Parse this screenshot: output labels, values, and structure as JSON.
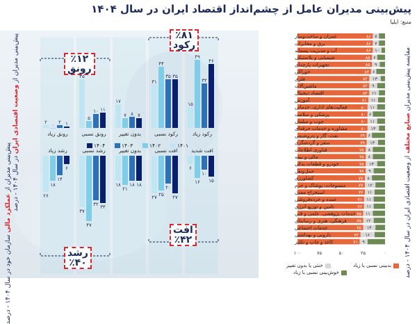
{
  "title": "پیش‌بینی مدیران عامل از چشم‌انداز اقتصاد ایران در سال ۱۴۰۴",
  "source": "منبع: ایلیا",
  "colors": {
    "orange": "#e8673a",
    "light": "#d9d9d9",
    "green": "#6d8a55",
    "bg_light_blue": "#9fd6ea",
    "y1401": "#bfe6f2",
    "y1402": "#7fcde6",
    "y1403": "#2e6fb6",
    "y1404": "#0a1f6b",
    "navy": "#1c2a5a",
    "red": "#d9262f"
  },
  "left": {
    "axis_title_top_pre": "پیش‌بینی مدیران از ",
    "axis_title_top_hi": "وضعیت اقتصادی ایران",
    "axis_title_top_post": " در سال ۱۴۰۴ - درصد",
    "axis_title_bottom_pre": "پیش‌بینی مدیران از ",
    "axis_title_bottom_hi": "عملکرد مالی",
    "axis_title_bottom_post": " سازمان خود در سال ۱۴۰۴ - درصد",
    "panel_rokud": {
      "name": "رکود",
      "pct": "٪۸۱"
    },
    "panel_ronagh": {
      "name": "رونق",
      "pct": "٪۱۲"
    },
    "panel_oft": {
      "name": "افت",
      "pct": "٪۴۲"
    },
    "panel_roshd": {
      "name": "رشد",
      "pct": "٪۴۰"
    }
  },
  "right": {
    "axis_title_pre": "مقایسه پیش‌بینی مدیران ",
    "axis_title_hi": "صنایع مختلف",
    "axis_title_post": " از وضعیت اقتصادی ایران در سال ۱۴۰۴ - درصد",
    "legend": [
      "بدبینی نسبی یا زیاد",
      "خنثی یا بدون تغییر",
      "خوش‌بینی نسبی یا زیاد"
    ],
    "x_ticks": [
      "۱۰۰",
      "۷۵",
      "۵۰",
      "۲۵",
      "۰"
    ]
  },
  "chart_data": [
    {
      "type": "bar",
      "title": "پیش‌بینی مدیران از وضعیت اقتصادی ایران در سال ۱۴۰۴ - درصد",
      "categories": [
        "رکود زیاد",
        "رکود نسبی",
        "بدون تغییر",
        "رونق نسبی",
        "رونق زیاد"
      ],
      "years": [
        "۱۴۰۱",
        "۱۴۰۲",
        "۱۴۰۳",
        "۱۴۰۴"
      ],
      "series": [
        {
          "name": "۱۴۰۱",
          "values": [
            15,
            31,
            17,
            35,
            2
          ],
          "labels": [
            "۱۵",
            "۳۱",
            "۱۷",
            "۳۵",
            "۲"
          ]
        },
        {
          "name": "۱۴۰۲",
          "values": [
            49,
            44,
            7,
            5,
            0
          ],
          "labels": [
            "۴۹",
            "۴۴",
            "۷",
            "۵",
            "۰"
          ]
        },
        {
          "name": "۱۴۰۳",
          "values": [
            32,
            35,
            8,
            10,
            2
          ],
          "labels": [
            "۳۲",
            "۳۵",
            "۸",
            "۱۰",
            "۲"
          ]
        },
        {
          "name": "۱۴۰۴",
          "values": [
            46,
            35,
            7,
            11,
            1
          ],
          "labels": [
            "۴۶",
            "۳۵",
            "۷",
            "۱۱",
            "۱"
          ]
        }
      ],
      "ylim": [
        0,
        55
      ]
    },
    {
      "type": "bar",
      "title": "پیش‌بینی مدیران از عملکرد مالی سازمان خود در سال ۱۴۰۴ - درصد",
      "categories": [
        "افت شدید",
        "افت نسبی",
        "بدون تغییر",
        "رشد نسبی",
        "رشد زیاد"
      ],
      "years": [
        "۱۴۰۱",
        "۱۴۰۲",
        "۱۴۰۳",
        "۱۴۰۴"
      ],
      "series": [
        {
          "name": "۱۴۰۱",
          "values": [
            6,
            27,
            18,
            37,
            26
          ],
          "labels": [
            "۶",
            "۲۷",
            "۱۸",
            "۳۷",
            "۲۶"
          ]
        },
        {
          "name": "۱۴۰۲",
          "values": [
            16,
            25,
            21,
            47,
            18
          ],
          "labels": [
            "۱۶",
            "۲۵",
            "۲۱",
            "۴۷",
            "۱۸"
          ]
        },
        {
          "name": "۱۴۰۳",
          "values": [
            10,
            20,
            18,
            32,
            14
          ],
          "labels": [
            "۱۰",
            "۲۰",
            "۱۸",
            "۳۲",
            "۱۴"
          ]
        },
        {
          "name": "۱۴۰۴",
          "values": [
            15,
            27,
            18,
            34,
            6
          ],
          "labels": [
            "۱۵",
            "۲۷",
            "۱۸",
            "۳۴",
            "۶"
          ]
        }
      ],
      "ylim": [
        0,
        55
      ]
    },
    {
      "type": "bar",
      "stacked": true,
      "orientation": "horizontal",
      "title": "مقایسه پیش‌بینی مدیران صنایع مختلف از وضعیت اقتصادی ایران در سال ۱۴۰۴ - درصد",
      "categories": [
        "عمران و ساخت‌وساز",
        "برق و مخابرات",
        "آب و مدیریت پسماند",
        "شیمیایی و پلاستیکی",
        "تجهیزات پارچه‌ای",
        "خوراکی",
        "فلزی",
        "ماشین‌آلات",
        "اقتصاد دیجیتال",
        "آموزش",
        "فعالیت‌های اداری، خدماتی",
        "پزشکی و سلامت",
        "چوب و مبلمان",
        "مشاوره و خدمات حرفه‌ای",
        "نفت، گاز و پتروشیمی",
        "سفر و گردشگری",
        "فناوری اطلاعات",
        "مالی و بیمه",
        "خودرو و قطعات یدکی",
        "حمل‌ونقل",
        "کشاورزی",
        "منسوجات، پوشاک و چرم",
        "استخراج معدن",
        "عمده و خرده‌فروشی",
        "تامین و توزیع انرژی",
        "خدمات پژوهشی، علمی و فنی",
        "فرهنگی، هنری و رسانه‌ای",
        "خدمات اجتماعی",
        "دارویی و بهداشتی",
        "کاغذ و چاپ و تکثیر"
      ],
      "series": [
        {
          "name": "بدبینی نسبی یا زیاد",
          "values": [
            86,
            86,
            86,
            85,
            85,
            84,
            82,
            82,
            82,
            81,
            80,
            80,
            80,
            80,
            79,
            79,
            78,
            78,
            78,
            78,
            77,
            77,
            77,
            76,
            76,
            75,
            75,
            75,
            72,
            71
          ],
          "labels": [
            "۸۶",
            "۸۶",
            "۸۶",
            "۸۵",
            "۸۵",
            "۸۴",
            "۸۲",
            "۸۲",
            "۸۲",
            "۸۱",
            "۸۰",
            "۸۰",
            "۸۰",
            "۸۰",
            "۷۹",
            "۷۹",
            "۷۸",
            "۷۸",
            "۷۸",
            "۷۸",
            "۷۷",
            "۷۷",
            "۷۷",
            "۷۶",
            "۷۶",
            "۷۵",
            "۷۵",
            "۷۵",
            "۷۲",
            "۷۱"
          ]
        },
        {
          "name": "خنثی یا بدون تغییر",
          "values": [
            7,
            7,
            10,
            6,
            9,
            6,
            13,
            9,
            11,
            11,
            11,
            6,
            11,
            13,
            6,
            13,
            8,
            8,
            13,
            9,
            8,
            12,
            11,
            11,
            11,
            11,
            12,
            14,
            16,
            9
          ],
          "labels": [
            "۷",
            "۷",
            "۱۰",
            "۶",
            "۹",
            "۶",
            "۱۳",
            "۹",
            "۱۱",
            "۱۱",
            "۱۱",
            "۶",
            "۱۱",
            "۱۳",
            "۶",
            "۱۳",
            "۸",
            "۸",
            "۱۳",
            "۹",
            "۸",
            "۱۲",
            "۱۱",
            "۱۱",
            "۱۱",
            "۱۱",
            "۱۲",
            "۱۴",
            "۱۶",
            "۹"
          ]
        },
        {
          "name": "خوش‌بینی نسبی یا زیاد",
          "values": [
            7,
            7,
            4,
            9,
            6,
            10,
            5,
            9,
            7,
            8,
            9,
            14,
            9,
            7,
            15,
            8,
            14,
            14,
            9,
            13,
            15,
            11,
            12,
            13,
            13,
            14,
            13,
            11,
            12,
            20
          ],
          "labels": [
            "",
            "",
            "",
            "",
            "",
            "",
            "",
            "",
            "",
            "",
            "",
            "",
            "",
            "",
            "",
            "",
            "",
            "",
            "",
            "",
            "",
            "",
            "",
            "",
            "",
            "",
            "",
            "",
            "",
            ""
          ]
        }
      ],
      "xlim": [
        0,
        100
      ]
    }
  ]
}
